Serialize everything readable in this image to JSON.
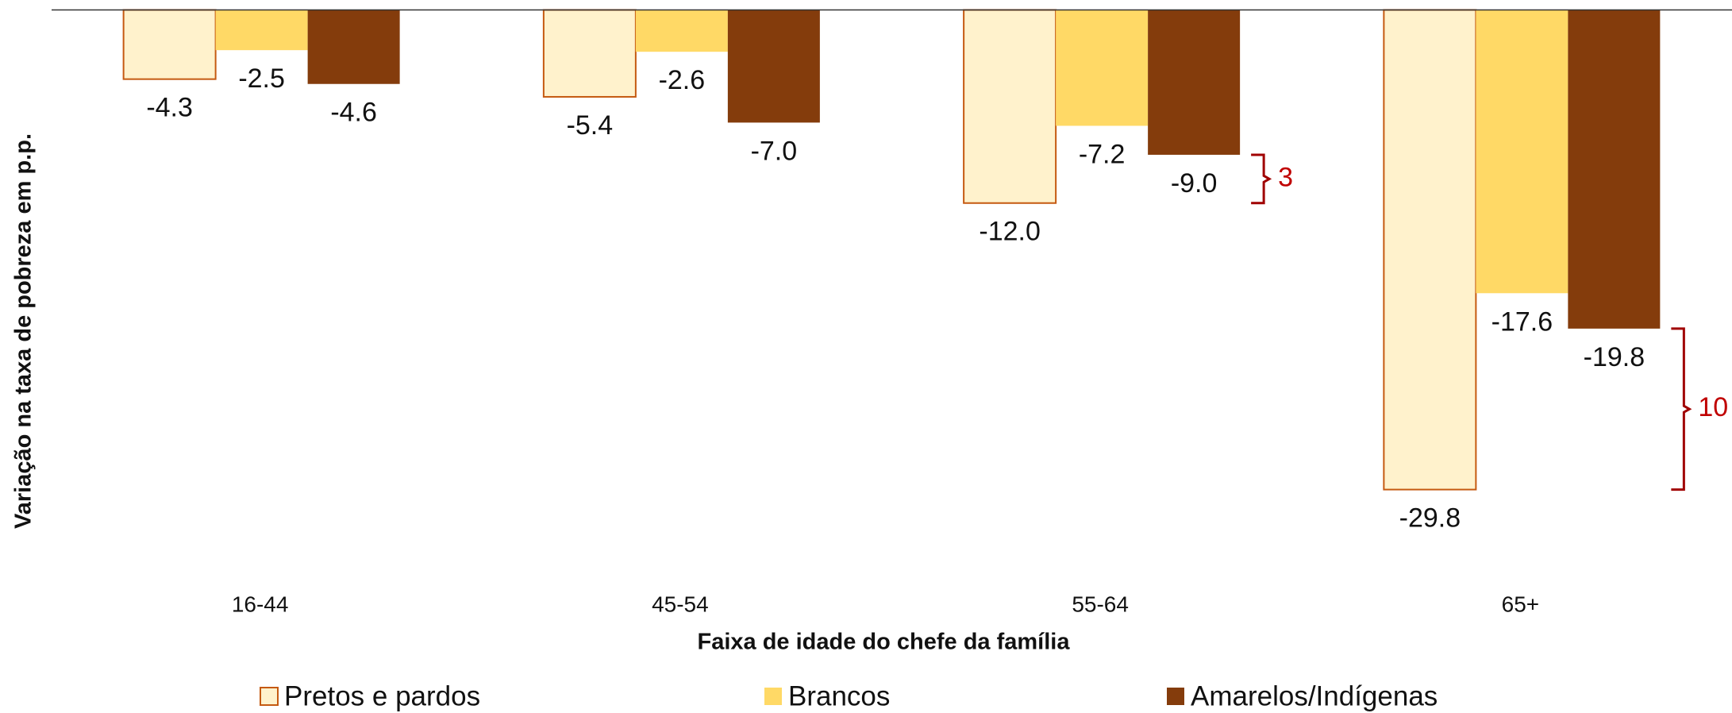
{
  "chart_data": {
    "type": "bar",
    "x_label": "Faixa de idade do chefe da família",
    "y_label": "Variação na taxa de pobreza em p.p.",
    "categories": [
      "16-44",
      "45-54",
      "55-64",
      "65+"
    ],
    "series": [
      {
        "name": "Pretos e pardos",
        "color": "#FFF2CC",
        "edgecolor": "#C55A11",
        "values": [
          -4.3,
          -5.4,
          -12.0,
          -29.8
        ],
        "value_labels": [
          "-4.3",
          "-5.4",
          "-12.0",
          "-29.8"
        ]
      },
      {
        "name": "Brancos",
        "color": "#FFD966",
        "values": [
          -2.5,
          -2.6,
          -7.2,
          -17.6
        ],
        "value_labels": [
          "-2.5",
          "-2.6",
          "-7.2",
          "-17.6"
        ]
      },
      {
        "name": "Amarelos/Indígenas",
        "color": "#843C0C",
        "values": [
          -4.6,
          -7.0,
          -9.0,
          -19.8
        ],
        "value_labels": [
          "-4.6",
          "-7.0",
          "-9.0",
          "-19.8"
        ]
      }
    ],
    "annotations": [
      "3",
      "10"
    ],
    "ylim": [
      -35,
      0
    ],
    "legend": "bottom"
  }
}
